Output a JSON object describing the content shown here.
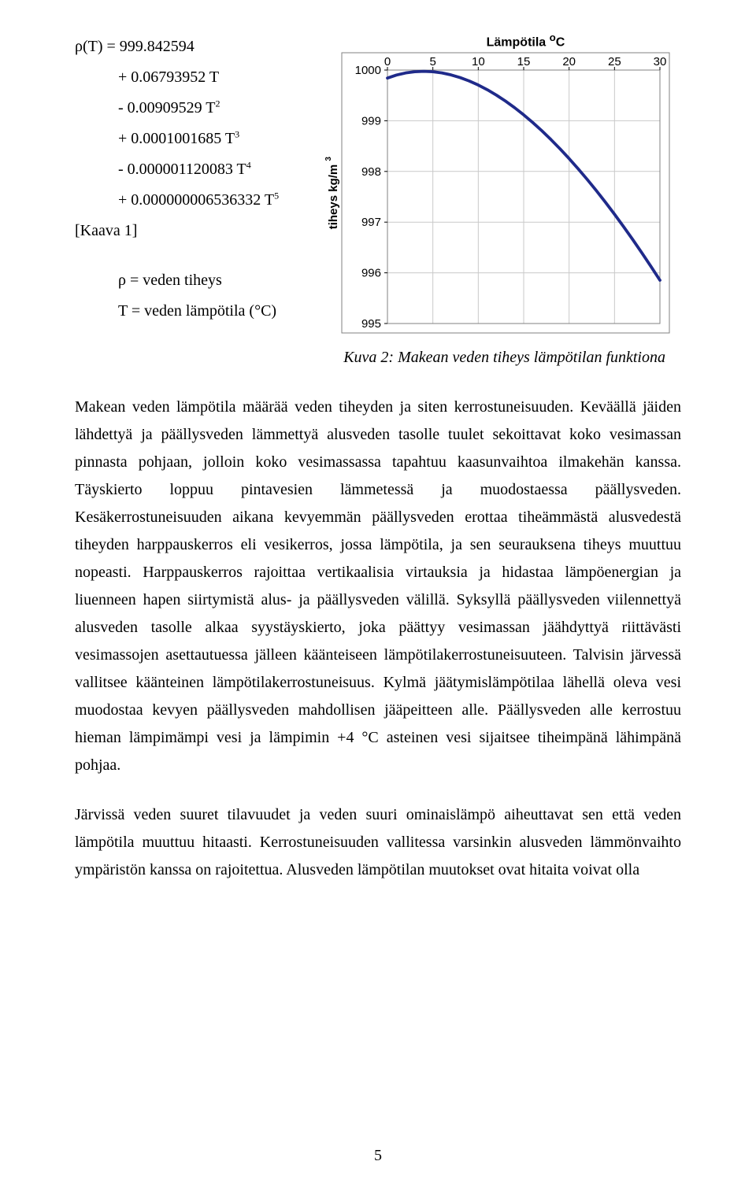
{
  "formula": {
    "lhs": "ρ(T) = 999.842594",
    "t1": "+ 0.06793952 T",
    "t2a": "- 0.00909529 T",
    "t2e": "2",
    "t3a": "+ 0.0001001685 T",
    "t3e": "3",
    "t4a": "- 0.000001120083 T",
    "t4e": "4",
    "t5a": "+ 0.000000006536332 T",
    "t5e": "5",
    "ref": "[Kaava 1]",
    "def1": "ρ = veden tiheys",
    "def2": "T = veden lämpötila (°C)"
  },
  "chart": {
    "title_a": "Lämpötila ",
    "title_sup": "o",
    "title_b": "C",
    "ylabel_a": "tiheys kg/m ",
    "ylabel_sup": "3",
    "xticks": [
      0,
      5,
      10,
      15,
      20,
      25,
      30
    ],
    "yticks": [
      1000,
      999,
      998,
      997,
      996,
      995
    ],
    "xlim": [
      0,
      30
    ],
    "ylim": [
      995,
      1000
    ],
    "series": [
      [
        0,
        999.8426
      ],
      [
        1,
        999.9017
      ],
      [
        2,
        999.943
      ],
      [
        3,
        999.9673
      ],
      [
        4,
        999.975
      ],
      [
        5,
        999.9668
      ],
      [
        6,
        999.9432
      ],
      [
        7,
        999.9046
      ],
      [
        8,
        999.8516
      ],
      [
        9,
        999.7847
      ],
      [
        10,
        999.7044
      ],
      [
        11,
        999.6111
      ],
      [
        12,
        999.5053
      ],
      [
        13,
        999.3873
      ],
      [
        14,
        999.2576
      ],
      [
        15,
        999.1166
      ],
      [
        16,
        998.9646
      ],
      [
        17,
        998.802
      ],
      [
        18,
        998.6291
      ],
      [
        19,
        998.4462
      ],
      [
        20,
        998.2537
      ],
      [
        21,
        998.0518
      ],
      [
        22,
        997.8408
      ],
      [
        23,
        997.6209
      ],
      [
        24,
        997.3924
      ],
      [
        25,
        997.1556
      ],
      [
        26,
        996.9107
      ],
      [
        27,
        996.6578
      ],
      [
        28,
        996.3973
      ],
      [
        29,
        996.1292
      ],
      [
        30,
        995.8539
      ]
    ],
    "line_color": "#1f2a8a",
    "line_width": 3.8,
    "grid_color": "#c9c9c9",
    "frame_color": "#808080",
    "tick_font": "Arial",
    "tick_size": 15
  },
  "caption": "Kuva 2: Makean veden tiheys lämpötilan funktiona",
  "para1": "Makean veden lämpötila määrää veden tiheyden ja siten kerrostuneisuuden. Keväällä jäiden lähdettyä ja päällysveden lämmettyä alusveden tasolle tuulet sekoittavat koko vesimassan pinnasta pohjaan, jolloin koko vesimassassa tapahtuu kaasunvaihtoa ilmakehän kanssa. Täyskierto loppuu pintavesien lämmetessä ja muodostaessa päällysveden. Kesäkerrostuneisuuden aikana kevyemmän päällysveden erottaa tiheämmästä alusvedestä tiheyden harppauskerros eli vesikerros, jossa lämpötila, ja sen seurauksena tiheys muuttuu nopeasti. Harppauskerros rajoittaa vertikaalisia virtauksia ja hidastaa lämpöenergian ja liuenneen hapen siirtymistä alus- ja päällysveden välillä. Syksyllä päällysveden viilennettyä alusveden tasolle alkaa syystäyskierto, joka päättyy vesimassan jäähdyttyä riittävästi vesimassojen asettautuessa jälleen käänteiseen lämpötilakerrostuneisuuteen. Talvisin järvessä vallitsee käänteinen lämpötilakerrostuneisuus. Kylmä jäätymislämpötilaa lähellä oleva vesi muodostaa kevyen päällysveden mahdollisen jääpeitteen alle. Päällysveden alle kerrostuu hieman lämpimämpi vesi ja lämpimin +4 °C asteinen vesi sijaitsee tiheimpänä lähimpänä pohjaa.",
  "para2": "Järvissä veden suuret tilavuudet ja veden suuri ominaislämpö aiheuttavat sen että veden lämpötila muuttuu hitaasti. Kerrostuneisuuden vallitessa varsinkin alusveden lämmönvaihto ympäristön kanssa on rajoitettua. Alusveden lämpötilan muutokset ovat hitaita voivat olla",
  "pagenum": "5"
}
